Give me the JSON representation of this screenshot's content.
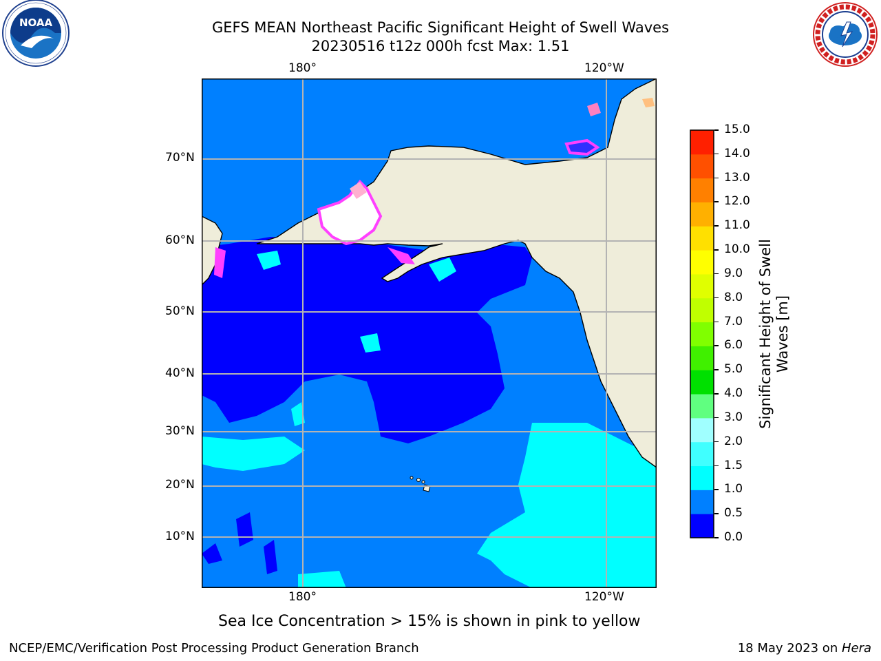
{
  "header": {
    "title_line1": "GEFS MEAN Northeast Pacific Significant Height of Swell Waves",
    "title_line2": "20230516 t12z 000h fcst   Max: 1.51"
  },
  "logos": {
    "noaa": {
      "icon": "noaa-logo",
      "text": "NOAA",
      "ring_text": "NATIONAL OCEANIC AND ATMOSPHERIC ADMINISTRATION · U.S. DEPARTMENT OF COMMERCE"
    },
    "nws": {
      "icon": "nws-logo",
      "ring_text": "NATIONAL WEATHER SERVICE"
    }
  },
  "map": {
    "lon_labels_top": [
      "180°",
      "120°W"
    ],
    "lon_labels_bottom": [
      "180°",
      "120°W"
    ],
    "lat_labels": [
      "70°N",
      "60°N",
      "50°N",
      "40°N",
      "30°N",
      "20°N",
      "10°N"
    ],
    "land_color": "#efedda",
    "grid_color": "#b3b3b3"
  },
  "colorbar": {
    "label_line1": "Significant Height of Swell",
    "label_line2": "Waves [m]",
    "ticks": [
      "0.0",
      "0.5",
      "1.0",
      "1.5",
      "2.0",
      "3.0",
      "4.0",
      "5.0",
      "6.0",
      "7.0",
      "8.0",
      "9.0",
      "10.0",
      "11.0",
      "12.0",
      "13.0",
      "14.0",
      "15.0"
    ],
    "colors": [
      "#0000ff",
      "#0080ff",
      "#00ffff",
      "#40ffff",
      "#a0ffff",
      "#60ff80",
      "#00e000",
      "#40f000",
      "#80ff00",
      "#c0ff00",
      "#e0ff00",
      "#ffff00",
      "#ffe000",
      "#ffb000",
      "#ff8000",
      "#ff5000",
      "#ff2000",
      "#ff0000"
    ]
  },
  "caption": "Sea Ice Concentration > 15% is shown in pink to yellow",
  "footer": {
    "left": "NCEP/EMC/Verification Post Processing Product Generation Branch",
    "right_prefix": "18 May 2023 on ",
    "right_host": "Hera"
  }
}
